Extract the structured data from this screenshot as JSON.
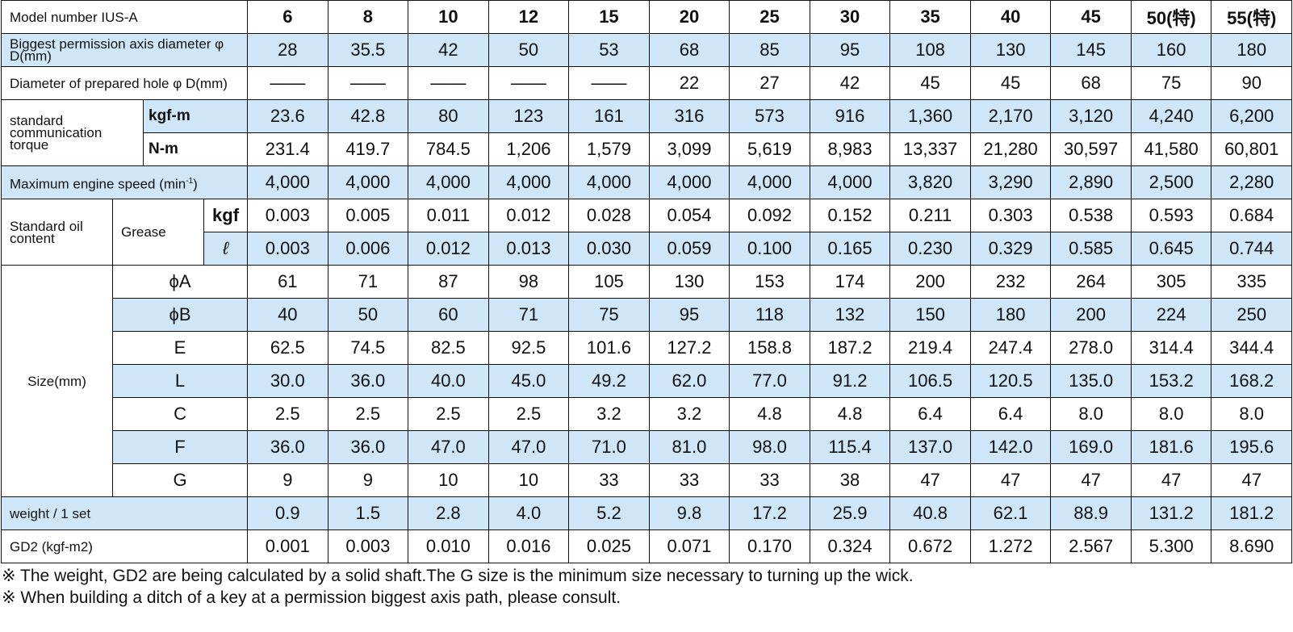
{
  "table": {
    "header": {
      "label": "Model number IUS-A",
      "models": [
        "6",
        "8",
        "10",
        "12",
        "15",
        "20",
        "25",
        "30",
        "35",
        "40",
        "45",
        "50(特)",
        "55(特)"
      ]
    },
    "rows": [
      {
        "label": "Biggest permission axis diameter φ D(mm)",
        "values": [
          "28",
          "35.5",
          "42",
          "50",
          "53",
          "68",
          "85",
          "95",
          "108",
          "130",
          "145",
          "160",
          "180"
        ]
      },
      {
        "label": "Diameter of prepared hole φ D(mm)",
        "values": [
          "——",
          "——",
          "——",
          "——",
          "——",
          "22",
          "27",
          "42",
          "45",
          "45",
          "68",
          "75",
          "90"
        ]
      },
      {
        "group": "standard communication torque",
        "sub": "kgf-m",
        "values": [
          "23.6",
          "42.8",
          "80",
          "123",
          "161",
          "316",
          "573",
          "916",
          "1,360",
          "2,170",
          "3,120",
          "4,240",
          "6,200"
        ]
      },
      {
        "sub": "N-m",
        "values": [
          "231.4",
          "419.7",
          "784.5",
          "1,206",
          "1,579",
          "3,099",
          "5,619",
          "8,983",
          "13,337",
          "21,280",
          "30,597",
          "41,580",
          "60,801"
        ]
      },
      {
        "label": "Maximum engine speed (min",
        "label_sup": "-1",
        "label_end": ")",
        "values": [
          "4,000",
          "4,000",
          "4,000",
          "4,000",
          "4,000",
          "4,000",
          "4,000",
          "4,000",
          "3,820",
          "3,290",
          "2,890",
          "2,500",
          "2,280"
        ]
      },
      {
        "group": "Standard oil content",
        "subgroup": "Grease",
        "sub": "kgf",
        "values": [
          "0.003",
          "0.005",
          "0.011",
          "0.012",
          "0.028",
          "0.054",
          "0.092",
          "0.152",
          "0.211",
          "0.303",
          "0.538",
          "0.593",
          "0.684"
        ]
      },
      {
        "sub": "ℓ",
        "values": [
          "0.003",
          "0.006",
          "0.012",
          "0.013",
          "0.030",
          "0.059",
          "0.100",
          "0.165",
          "0.230",
          "0.329",
          "0.585",
          "0.645",
          "0.744"
        ]
      },
      {
        "group": "Size(mm)",
        "sub": "ϕA",
        "values": [
          "61",
          "71",
          "87",
          "98",
          "105",
          "130",
          "153",
          "174",
          "200",
          "232",
          "264",
          "305",
          "335"
        ]
      },
      {
        "sub": "ϕB",
        "values": [
          "40",
          "50",
          "60",
          "71",
          "75",
          "95",
          "118",
          "132",
          "150",
          "180",
          "200",
          "224",
          "250"
        ]
      },
      {
        "sub": "E",
        "values": [
          "62.5",
          "74.5",
          "82.5",
          "92.5",
          "101.6",
          "127.2",
          "158.8",
          "187.2",
          "219.4",
          "247.4",
          "278.0",
          "314.4",
          "344.4"
        ]
      },
      {
        "sub": "L",
        "values": [
          "30.0",
          "36.0",
          "40.0",
          "45.0",
          "49.2",
          "62.0",
          "77.0",
          "91.2",
          "106.5",
          "120.5",
          "135.0",
          "153.2",
          "168.2"
        ]
      },
      {
        "sub": "C",
        "values": [
          "2.5",
          "2.5",
          "2.5",
          "2.5",
          "3.2",
          "3.2",
          "4.8",
          "4.8",
          "6.4",
          "6.4",
          "8.0",
          "8.0",
          "8.0"
        ]
      },
      {
        "sub": "F",
        "values": [
          "36.0",
          "36.0",
          "47.0",
          "47.0",
          "71.0",
          "81.0",
          "98.0",
          "115.4",
          "137.0",
          "142.0",
          "169.0",
          "181.6",
          "195.6"
        ]
      },
      {
        "sub": "G",
        "values": [
          "9",
          "9",
          "10",
          "10",
          "33",
          "33",
          "33",
          "38",
          "47",
          "47",
          "47",
          "47",
          "47"
        ]
      },
      {
        "label": "weight / 1 set",
        "values": [
          "0.9",
          "1.5",
          "2.8",
          "4.0",
          "5.2",
          "9.8",
          "17.2",
          "25.9",
          "40.8",
          "62.1",
          "88.9",
          "131.2",
          "181.2"
        ]
      },
      {
        "label": "GD2 (kgf-m2)",
        "values": [
          "0.001",
          "0.003",
          "0.010",
          "0.016",
          "0.025",
          "0.071",
          "0.170",
          "0.324",
          "0.672",
          "1.272",
          "2.567",
          "5.300",
          "8.690"
        ]
      }
    ]
  },
  "notes": [
    "※ The weight, GD2 are being calculated by a solid shaft.The G size is the minimum size necessary to turning up the wick.",
    "※ When building a ditch of a key at a permission biggest axis path, please consult."
  ]
}
